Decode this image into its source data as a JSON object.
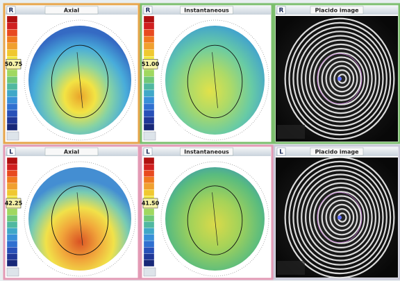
{
  "panels": [
    {
      "eye": "R",
      "title": "Axial",
      "scale_value": "50.75"
    },
    {
      "eye": "R",
      "title": "Instantaneous",
      "scale_value": "51.00"
    },
    {
      "eye": "R",
      "title": "Placido image"
    },
    {
      "eye": "L",
      "title": "Axial",
      "scale_value": "42.25"
    },
    {
      "eye": "L",
      "title": "Instantaneous",
      "scale_value": "41.50"
    },
    {
      "eye": "L",
      "title": "Placido image"
    }
  ]
}
